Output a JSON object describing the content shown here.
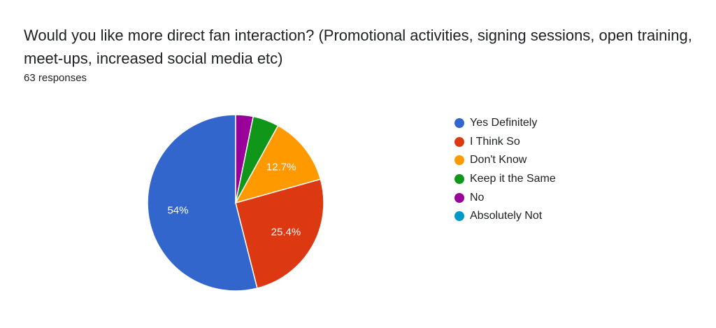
{
  "question": {
    "title": "Would you like more direct fan interaction? (Promotional activities, signing sessions, open training, meet-ups, increased social media etc)",
    "responses": "63 responses"
  },
  "chart_data": {
    "type": "pie",
    "start_angle_deg": 90,
    "direction": "counterclockwise",
    "slices": [
      {
        "label": "Yes Definitely",
        "value": 54.0,
        "color": "#3366cc",
        "data_label": "54%"
      },
      {
        "label": "I Think So",
        "value": 25.4,
        "color": "#dc3912",
        "data_label": "25.4%"
      },
      {
        "label": "Don't Know",
        "value": 12.7,
        "color": "#ff9900",
        "data_label": "12.7%"
      },
      {
        "label": "Keep it the Same",
        "value": 4.8,
        "color": "#109618",
        "data_label": ""
      },
      {
        "label": "No",
        "value": 3.2,
        "color": "#990099",
        "data_label": ""
      },
      {
        "label": "Absolutely Not",
        "value": 0,
        "color": "#0099c6",
        "data_label": ""
      }
    ],
    "legend_position": "right"
  }
}
